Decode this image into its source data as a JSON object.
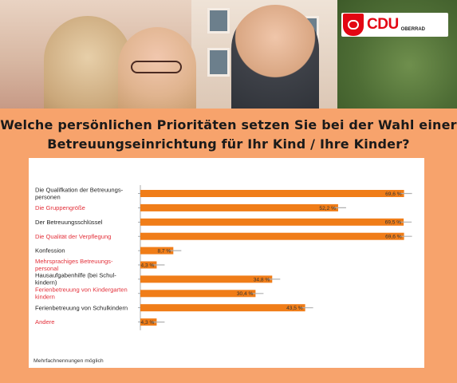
{
  "header": {
    "logo_text": "CDU",
    "logo_sub": "OBERRAD",
    "title_line1": "Welche persönlichen Prioritäten setzen Sie bei der Wahl einer",
    "title_line2": "Betreuungseinrichtung für Ihr Kind / Ihre Kinder?"
  },
  "colors": {
    "background": "#f7a36c",
    "bar": "#f07d18",
    "error_whisker": "#b0b0b0",
    "highlight_label": "#e3303a",
    "logo_red": "#e30613"
  },
  "chart_data": {
    "type": "bar",
    "orientation": "horizontal",
    "categories": [
      [
        "Die Qualifkation der Betreuungs-",
        "personen"
      ],
      [
        "Die Gruppengröße"
      ],
      [
        "Der Betreuungsschlüssel"
      ],
      [
        "Die Qualität der Verpflegung"
      ],
      [
        "Konfession"
      ],
      [
        "Mehrsprachiges Betreuungs-",
        "personal"
      ],
      [
        "Hausaufgabenhilfe (bei Schul-",
        "kindern)"
      ],
      [
        "Ferienbetreuung von Kindergarten",
        "kindern"
      ],
      [
        "Ferienbetreuung von Schulkindern"
      ],
      [
        "Andere"
      ]
    ],
    "highlighted": [
      false,
      true,
      false,
      true,
      false,
      true,
      false,
      true,
      false,
      true
    ],
    "values": [
      69.6,
      52.2,
      69.5,
      69.6,
      8.7,
      4.3,
      34.8,
      30.4,
      43.5,
      4.3
    ],
    "value_labels": [
      "69,6 %",
      "52,2 %",
      "69,5 %",
      "69,6 %",
      "8,7 %",
      "4,3 %",
      "34,8 %",
      "30,4 %",
      "43,5 %",
      "4,3 %"
    ],
    "xlim": [
      0,
      72
    ],
    "grid": false,
    "legend": "none",
    "footnote": "Mehrfachnennungen möglich"
  }
}
